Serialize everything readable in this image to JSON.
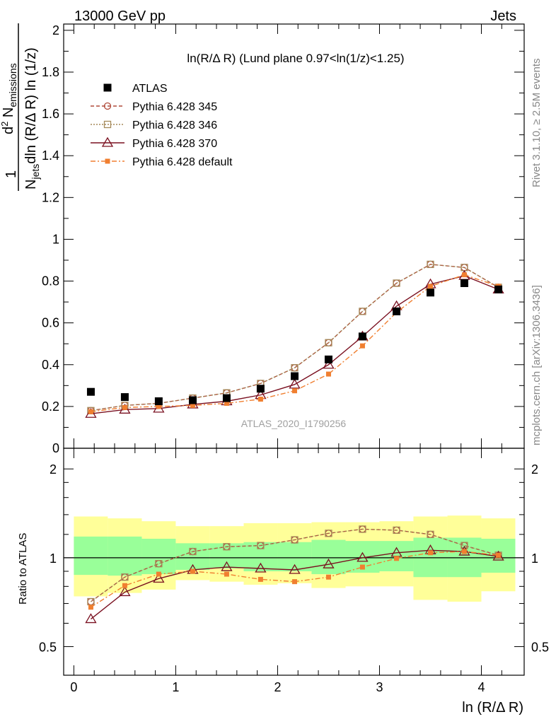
{
  "header": {
    "energy_label": "13000 GeV pp",
    "process_label": "Jets"
  },
  "side_labels": {
    "rivet": "Rivet 3.1.10, ≥ 2.5M events",
    "mcplots": "mcplots.cern.ch [arXiv:1306.3436]"
  },
  "plot_title": "ln(R/Δ R) (Lund plane 0.97<ln(1/z)<1.25)",
  "analysis_tag": "ATLAS_2020_I1790256",
  "chart_data": [
    {
      "type": "scatter",
      "title": "ln(R/Δ R) (Lund plane 0.97<ln(1/z)<1.25)",
      "xlabel": "ln (R/Δ R)",
      "ylabel": "1/N_jets d²N_emissions / dln(R/Δ R) ln(1/z)",
      "xlim": [
        -0.1,
        4.42
      ],
      "ylim": [
        0,
        2.03
      ],
      "x": [
        0.167,
        0.5,
        0.833,
        1.167,
        1.5,
        1.833,
        2.167,
        2.5,
        2.833,
        3.167,
        3.5,
        3.833,
        4.167
      ],
      "legend_position": "top-left",
      "series": [
        {
          "name": "ATLAS",
          "marker": "filled-square",
          "color": "#000000",
          "values": [
            0.27,
            0.245,
            0.225,
            0.23,
            0.24,
            0.285,
            0.345,
            0.425,
            0.535,
            0.655,
            0.745,
            0.79,
            0.76
          ]
        },
        {
          "name": "Pythia 6.428 345",
          "marker": "open-circle",
          "line": "dashed",
          "color": "#b04a3a",
          "values": [
            0.18,
            0.205,
            0.215,
            0.24,
            0.265,
            0.31,
            0.385,
            0.505,
            0.655,
            0.79,
            0.88,
            0.865,
            0.77
          ]
        },
        {
          "name": "Pythia 6.428 346",
          "marker": "open-square",
          "line": "dotted",
          "color": "#a58a5a",
          "values": [
            0.18,
            0.205,
            0.215,
            0.24,
            0.265,
            0.31,
            0.385,
            0.505,
            0.655,
            0.79,
            0.88,
            0.865,
            0.77
          ]
        },
        {
          "name": "Pythia 6.428 370",
          "marker": "open-triangle",
          "line": "solid",
          "color": "#7a1020",
          "values": [
            0.165,
            0.185,
            0.19,
            0.21,
            0.225,
            0.255,
            0.305,
            0.4,
            0.535,
            0.68,
            0.785,
            0.825,
            0.76
          ]
        },
        {
          "name": "Pythia 6.428 default",
          "marker": "filled-small-square",
          "line": "dash-dot",
          "color": "#f07f30",
          "values": [
            0.175,
            0.195,
            0.2,
            0.205,
            0.215,
            0.235,
            0.275,
            0.355,
            0.49,
            0.65,
            0.775,
            0.83,
            0.775
          ]
        }
      ],
      "yticks": [
        0,
        0.2,
        0.4,
        0.6,
        0.8,
        1,
        1.2,
        1.4,
        1.6,
        1.8,
        2
      ]
    },
    {
      "type": "scatter",
      "xlabel": "ln (R/Δ R)",
      "ylabel": "Ratio to ATLAS",
      "ylim": [
        0.4,
        2.35
      ],
      "log_scale_y": true,
      "xticks": [
        0,
        1,
        2,
        3,
        4
      ],
      "yticks": [
        0.5,
        1,
        2
      ],
      "reference_line": 1,
      "uncertainty_bands": {
        "bin_edges": [
          0,
          0.333,
          0.667,
          1.0,
          1.333,
          1.667,
          2.0,
          2.333,
          2.667,
          3.0,
          3.333,
          3.667,
          4.0,
          4.333
        ],
        "inner": [
          [
            0.875,
            1.18
          ],
          [
            0.87,
            1.18
          ],
          [
            0.88,
            1.16
          ],
          [
            0.91,
            1.12
          ],
          [
            0.92,
            1.12
          ],
          [
            0.9,
            1.13
          ],
          [
            0.9,
            1.13
          ],
          [
            0.88,
            1.15
          ],
          [
            0.89,
            1.14
          ],
          [
            0.9,
            1.14
          ],
          [
            0.86,
            1.17
          ],
          [
            0.86,
            1.17
          ],
          [
            0.89,
            1.16
          ]
        ],
        "outer": [
          [
            0.74,
            1.38
          ],
          [
            0.76,
            1.36
          ],
          [
            0.78,
            1.33
          ],
          [
            0.84,
            1.28
          ],
          [
            0.83,
            1.28
          ],
          [
            0.81,
            1.31
          ],
          [
            0.82,
            1.31
          ],
          [
            0.79,
            1.32
          ],
          [
            0.8,
            1.32
          ],
          [
            0.8,
            1.33
          ],
          [
            0.72,
            1.38
          ],
          [
            0.71,
            1.39
          ],
          [
            0.77,
            1.36
          ]
        ],
        "inner_color": "#99ff99",
        "outer_color": "#ffff99"
      },
      "x": [
        0.167,
        0.5,
        0.833,
        1.167,
        1.5,
        1.833,
        2.167,
        2.5,
        2.833,
        3.167,
        3.5,
        3.833,
        4.167
      ],
      "series": [
        {
          "name": "Pythia 6.428 345",
          "values": [
            0.71,
            0.86,
            0.955,
            1.05,
            1.09,
            1.1,
            1.15,
            1.21,
            1.25,
            1.24,
            1.2,
            1.1,
            1.02
          ]
        },
        {
          "name": "Pythia 6.428 346",
          "values": [
            0.71,
            0.86,
            0.955,
            1.05,
            1.09,
            1.1,
            1.15,
            1.21,
            1.25,
            1.24,
            1.2,
            1.1,
            1.02
          ]
        },
        {
          "name": "Pythia 6.428 370",
          "values": [
            0.62,
            0.765,
            0.85,
            0.91,
            0.93,
            0.92,
            0.91,
            0.95,
            1.0,
            1.04,
            1.06,
            1.05,
            1.01
          ]
        },
        {
          "name": "Pythia 6.428 default",
          "values": [
            0.68,
            0.805,
            0.88,
            0.9,
            0.88,
            0.845,
            0.83,
            0.86,
            0.93,
            0.995,
            1.04,
            1.05,
            1.02
          ]
        }
      ]
    }
  ]
}
